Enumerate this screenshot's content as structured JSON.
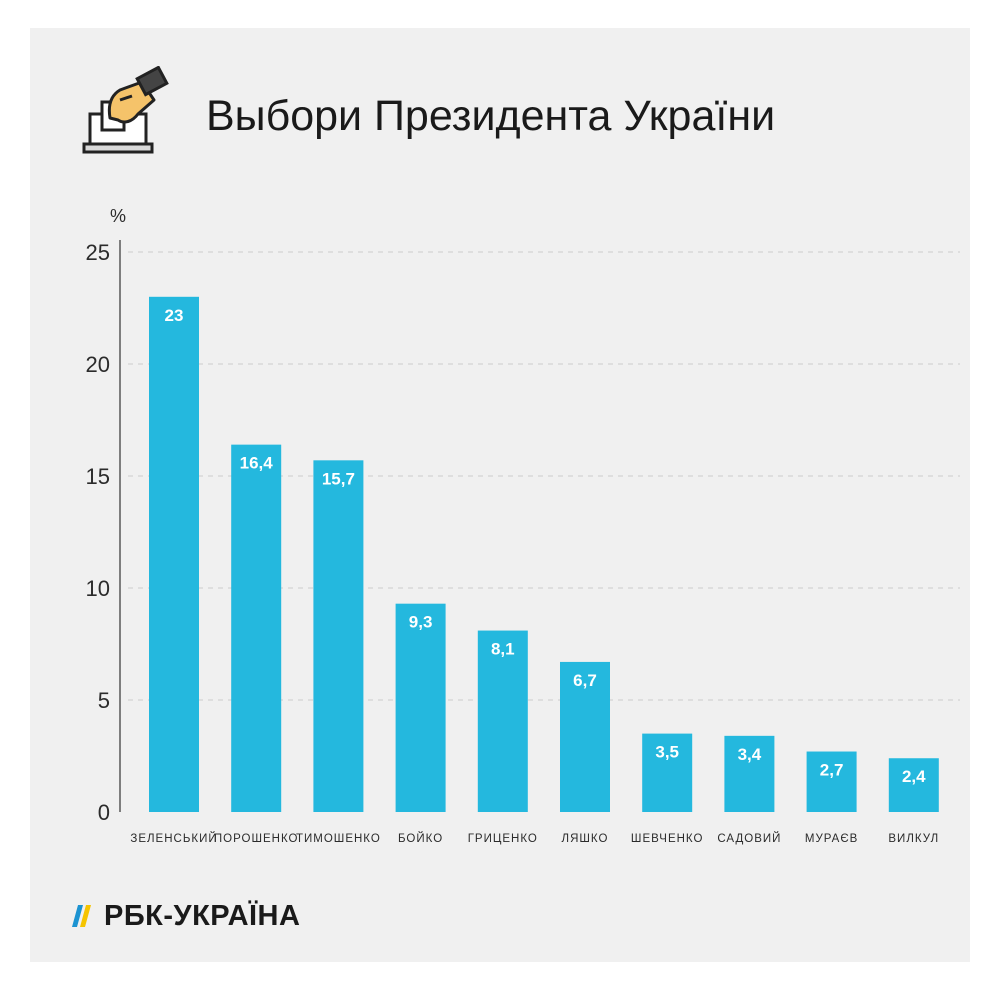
{
  "header": {
    "title": "Выбори Президента України",
    "icon": "ballot-hand-icon"
  },
  "logo": {
    "text": "РБК-УКРАЇНА",
    "icon": "rbk-flag-icon"
  },
  "colors": {
    "bar": "#24b8de",
    "background": "#f0f0f0",
    "gridline": "#cccccc",
    "axis": "#333333",
    "logo_blue": "#1c93d1",
    "logo_yellow": "#f5c400"
  },
  "chart_data": {
    "type": "bar",
    "ylabel": "%",
    "ylim": [
      0,
      25
    ],
    "yticks": [
      "0",
      "5",
      "10",
      "15",
      "20",
      "25"
    ],
    "grid": true,
    "categories": [
      "ЗЕЛЕНСЬКИЙ",
      "ПОРОШЕНКО",
      "ТИМОШЕНКО",
      "БОЙКО",
      "ГРИЦЕНКО",
      "ЛЯШКО",
      "ШЕВЧЕНКО",
      "САДОВИЙ",
      "МУРАЄВ",
      "ВИЛКУЛ"
    ],
    "values": [
      23,
      16.4,
      15.7,
      9.3,
      8.1,
      6.7,
      3.5,
      3.4,
      2.7,
      2.4
    ],
    "value_labels": [
      "23",
      "16,4",
      "15,7",
      "9,3",
      "8,1",
      "6,7",
      "3,5",
      "3,4",
      "2,7",
      "2,4"
    ]
  }
}
